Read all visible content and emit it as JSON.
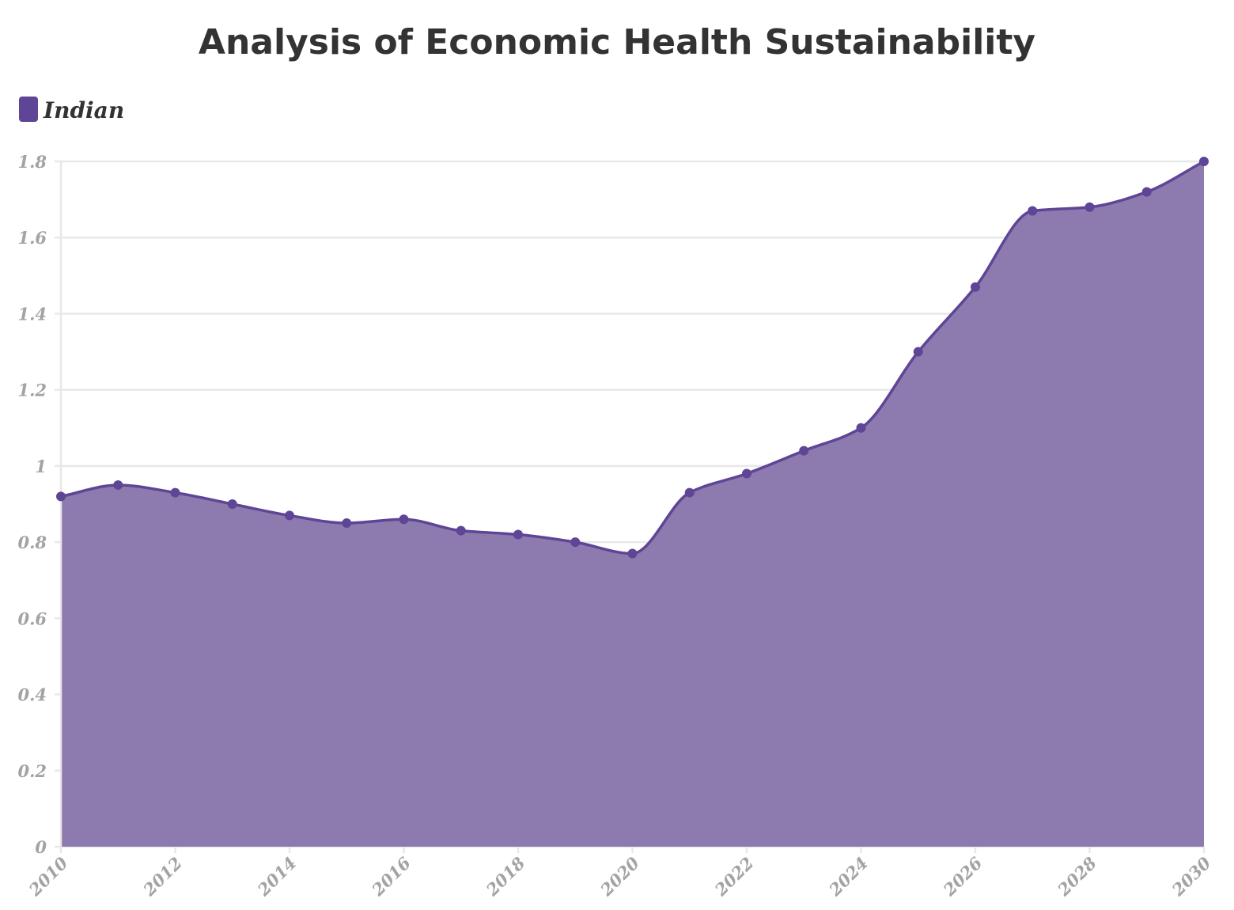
{
  "chart_data": {
    "type": "area",
    "title": "Analysis of Economic Health Sustainability",
    "xlabel": "",
    "ylabel": "",
    "x": [
      2010,
      2011,
      2012,
      2013,
      2014,
      2015,
      2016,
      2017,
      2018,
      2019,
      2020,
      2021,
      2022,
      2023,
      2024,
      2025,
      2026,
      2027,
      2028,
      2029,
      2030
    ],
    "series": [
      {
        "name": "Indian",
        "color": "#5e4595",
        "fill_color": "#8d7baf",
        "values": [
          0.92,
          0.95,
          0.93,
          0.9,
          0.87,
          0.85,
          0.86,
          0.83,
          0.82,
          0.8,
          0.77,
          0.93,
          0.98,
          1.04,
          1.1,
          1.3,
          1.47,
          1.67,
          1.68,
          1.72,
          1.8
        ]
      }
    ],
    "xlim": [
      2010,
      2030
    ],
    "ylim": [
      0,
      1.8
    ],
    "x_ticks": [
      "2010",
      "2012",
      "2014",
      "2016",
      "2018",
      "2020",
      "2022",
      "2024",
      "2026",
      "2028",
      "2030"
    ],
    "y_ticks": [
      "0",
      "0.2",
      "0.4",
      "0.6",
      "0.8",
      "1",
      "1.2",
      "1.4",
      "1.6",
      "1.8"
    ],
    "grid": true,
    "legend_position": "top-left",
    "curve": "smooth"
  }
}
